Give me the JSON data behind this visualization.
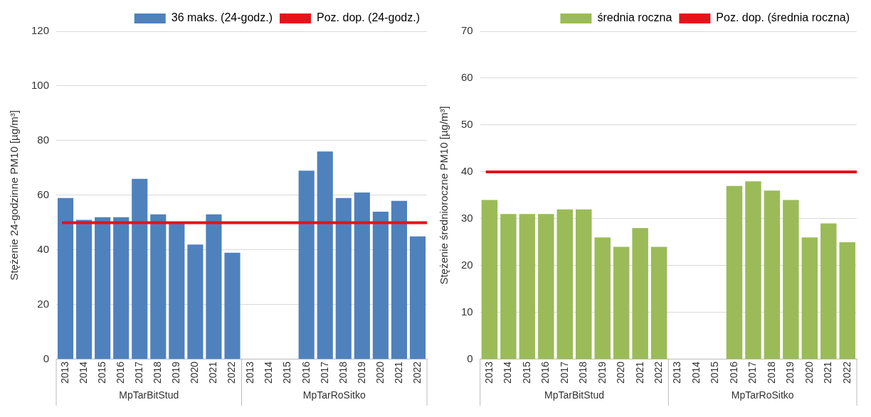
{
  "chart_data": [
    {
      "type": "bar",
      "ylabel": "Stężenie 24-godzinne PM10 [µg/m³]",
      "categories": [
        "2013",
        "2014",
        "2015",
        "2016",
        "2017",
        "2018",
        "2019",
        "2020",
        "2021",
        "2022",
        "2013",
        "2014",
        "2015",
        "2016",
        "2017",
        "2018",
        "2019",
        "2020",
        "2021",
        "2022"
      ],
      "series": [
        {
          "name": "36 maks. (24-godz.)",
          "color": "#4f81bd",
          "values": [
            59,
            51,
            52,
            52,
            66,
            53,
            50,
            42,
            53,
            39,
            null,
            null,
            null,
            69,
            76,
            59,
            61,
            54,
            58,
            45
          ]
        }
      ],
      "annotations": [
        "MpTarBitStud",
        "MpTarRoSitko"
      ],
      "ref_lines": [
        {
          "axis": "y",
          "value": 50,
          "label": "Poz. dop. (24-godz.)",
          "color": "#e3121b"
        }
      ],
      "ylim": [
        0,
        120
      ],
      "yticks": [
        0,
        20,
        40,
        60,
        80,
        100,
        120
      ],
      "grid": "y",
      "legend": "top right"
    },
    {
      "type": "bar",
      "ylabel": "Stężenie średnioroczne PM10 [µg/m³]",
      "categories": [
        "2013",
        "2014",
        "2015",
        "2016",
        "2017",
        "2018",
        "2019",
        "2020",
        "2021",
        "2022",
        "2013",
        "2014",
        "2015",
        "2016",
        "2017",
        "2018",
        "2019",
        "2020",
        "2021",
        "2022"
      ],
      "series": [
        {
          "name": "średnia roczna",
          "color": "#9bbb59",
          "values": [
            34,
            31,
            31,
            31,
            32,
            32,
            26,
            24,
            28,
            24,
            null,
            null,
            null,
            37,
            38,
            36,
            34,
            26,
            29,
            25
          ]
        }
      ],
      "annotations": [
        "MpTarBitStud",
        "MpTarRoSitko"
      ],
      "ref_lines": [
        {
          "axis": "y",
          "value": 40,
          "label": "Poz. dop. (średnia roczna)",
          "color": "#e3121b"
        }
      ],
      "ylim": [
        0,
        70
      ],
      "yticks": [
        0,
        10,
        20,
        30,
        40,
        50,
        60,
        70
      ],
      "grid": "y",
      "legend": "top right"
    }
  ]
}
